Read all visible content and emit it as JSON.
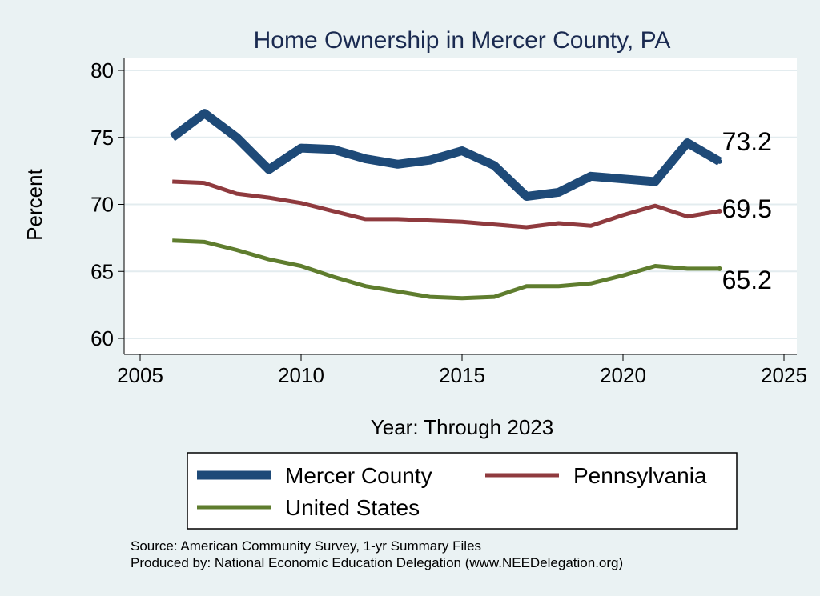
{
  "chart_data": {
    "type": "line",
    "title": "Home Ownership in Mercer County, PA",
    "xlabel": "Year: Through 2023",
    "ylabel": "Percent",
    "xlim": [
      2005,
      2025
    ],
    "ylim": [
      60,
      80
    ],
    "x_ticks": [
      "2005",
      "2010",
      "2015",
      "2020",
      "2025"
    ],
    "y_ticks": [
      "60",
      "65",
      "70",
      "75",
      "80"
    ],
    "grid": true,
    "legend_position": "bottom",
    "x": [
      2006,
      2007,
      2008,
      2009,
      2010,
      2011,
      2012,
      2013,
      2014,
      2015,
      2016,
      2017,
      2018,
      2019,
      2020,
      2021,
      2022,
      2023
    ],
    "series": [
      {
        "name": "Mercer County",
        "color": "#1e4a78",
        "values": [
          75.0,
          76.8,
          75.0,
          72.6,
          74.2,
          74.1,
          73.4,
          73.0,
          73.3,
          74.0,
          72.9,
          70.6,
          70.9,
          72.1,
          71.9,
          71.7,
          74.6,
          73.2
        ],
        "end_label": "73.2"
      },
      {
        "name": "Pennsylvania",
        "color": "#8f3a3e",
        "values": [
          71.7,
          71.6,
          70.8,
          70.5,
          70.1,
          69.5,
          68.9,
          68.9,
          68.8,
          68.7,
          68.5,
          68.3,
          68.6,
          68.4,
          69.2,
          69.9,
          69.1,
          69.5
        ],
        "end_label": "69.5"
      },
      {
        "name": "United States",
        "color": "#5f7d2e",
        "values": [
          67.3,
          67.2,
          66.6,
          65.9,
          65.4,
          64.6,
          63.9,
          63.5,
          63.1,
          63.0,
          63.1,
          63.9,
          63.9,
          64.1,
          64.7,
          65.4,
          65.2,
          65.2
        ],
        "end_label": "65.2"
      }
    ],
    "legend": [
      "Mercer County",
      "Pennsylvania",
      "United States"
    ]
  },
  "source_note": {
    "line1": "Source: American Community Survey, 1-yr Summary Files",
    "line2": "Produced by: National Economic Education Delegation (www.NEEDelegation.org)"
  }
}
